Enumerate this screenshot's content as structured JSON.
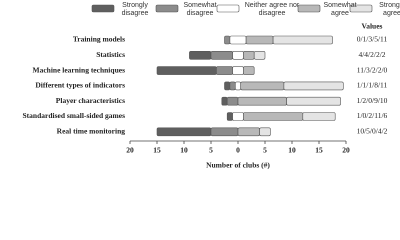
{
  "chart_data": {
    "type": "diverging_bar",
    "categories": [
      "Training models",
      "Statistics",
      "Machine learning techniques",
      "Different types of indicators",
      "Player characteristics",
      "Standardised small-sided games",
      "Real time monitoring"
    ],
    "series": [
      {
        "name": "Strongly disagree",
        "color": "#5f5f5f",
        "values": [
          0,
          4,
          11,
          1,
          1,
          1,
          10
        ]
      },
      {
        "name": "Somewhat disagree",
        "color": "#8c8c8c",
        "values": [
          1,
          4,
          3,
          1,
          2,
          0,
          5
        ]
      },
      {
        "name": "Neither agree nor disagree",
        "color": "#ffffff",
        "values": [
          3,
          2,
          2,
          1,
          0,
          2,
          0
        ]
      },
      {
        "name": "Somewhat agree",
        "color": "#b8b8b8",
        "values": [
          5,
          2,
          2,
          8,
          9,
          11,
          4
        ]
      },
      {
        "name": "Strongly agree",
        "color": "#e4e4e4",
        "values": [
          11,
          2,
          0,
          11,
          10,
          6,
          2
        ]
      }
    ],
    "value_labels_title": "Values",
    "value_labels": [
      "0/1/3/5/11",
      "4/4/2/2/2",
      "11/3/2/2/0",
      "1/1/1/8/11",
      "1/2/0/9/10",
      "1/0/2/11/6",
      "10/5/0/4/2"
    ],
    "xlim": [
      -20,
      20
    ],
    "xticks": [
      {
        "value": -20,
        "label": "20"
      },
      {
        "value": -15,
        "label": "15"
      },
      {
        "value": -10,
        "label": "10"
      },
      {
        "value": -5,
        "label": "5"
      },
      0,
      5,
      10,
      15,
      20
    ],
    "xlabel": "Number of clubs (#)"
  }
}
